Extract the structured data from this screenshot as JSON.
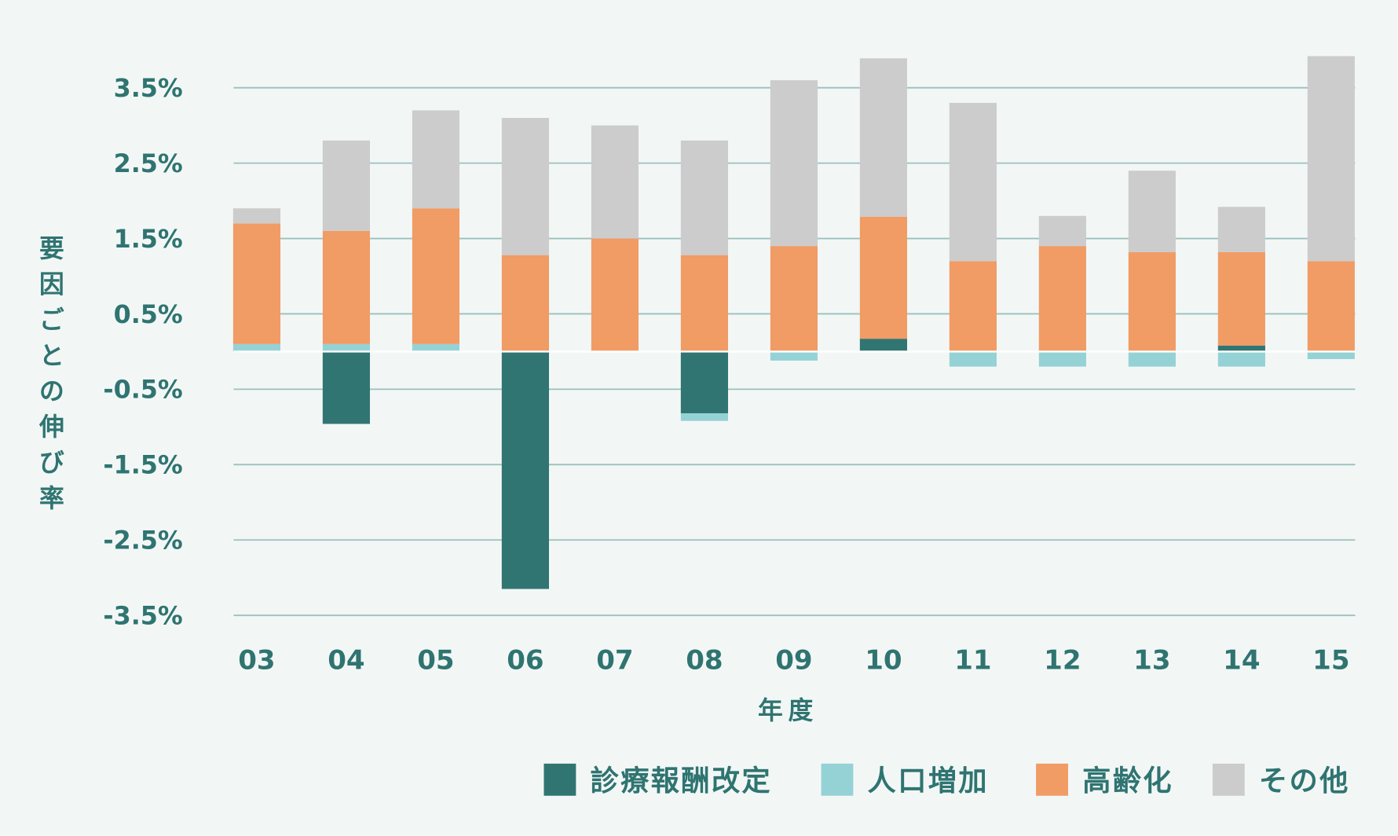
{
  "chart_data": {
    "type": "bar",
    "stacked": true,
    "xlabel": "年度",
    "ylabel": "要因ごとの伸び率",
    "ylim": [
      -3.5,
      3.5
    ],
    "yticks": [
      3.5,
      2.5,
      1.5,
      0.5,
      -0.5,
      -1.5,
      -2.5,
      -3.5
    ],
    "ytick_labels": [
      "3.5%",
      "2.5%",
      "1.5%",
      "0.5%",
      "-0.5%",
      "-1.5%",
      "-2.5%",
      "-3.5%"
    ],
    "grid": true,
    "legend_position": "bottom-right",
    "categories": [
      "03",
      "04",
      "05",
      "06",
      "07",
      "08",
      "09",
      "10",
      "11",
      "12",
      "13",
      "14",
      "15"
    ],
    "series": [
      {
        "name": "診療報酬改定",
        "color": "#317572",
        "values": [
          0,
          -0.96,
          0,
          -3.15,
          0,
          -0.82,
          0,
          0.17,
          0,
          0,
          0,
          0.08,
          0
        ]
      },
      {
        "name": "人口増加",
        "color": "#95d2d6",
        "values": [
          0.1,
          0.1,
          0.1,
          0,
          0,
          -0.1,
          -0.12,
          0,
          -0.2,
          -0.2,
          -0.2,
          -0.2,
          -0.1
        ]
      },
      {
        "name": "高齢化",
        "color": "#f19b65",
        "values": [
          1.6,
          1.5,
          1.8,
          1.28,
          1.5,
          1.28,
          1.4,
          1.62,
          1.2,
          1.4,
          1.32,
          1.24,
          1.2
        ]
      },
      {
        "name": "その他",
        "color": "#cccccc",
        "values": [
          0.2,
          1.2,
          1.3,
          1.82,
          1.5,
          1.52,
          2.2,
          2.1,
          2.1,
          0.4,
          1.08,
          0.6,
          2.72
        ]
      }
    ]
  }
}
